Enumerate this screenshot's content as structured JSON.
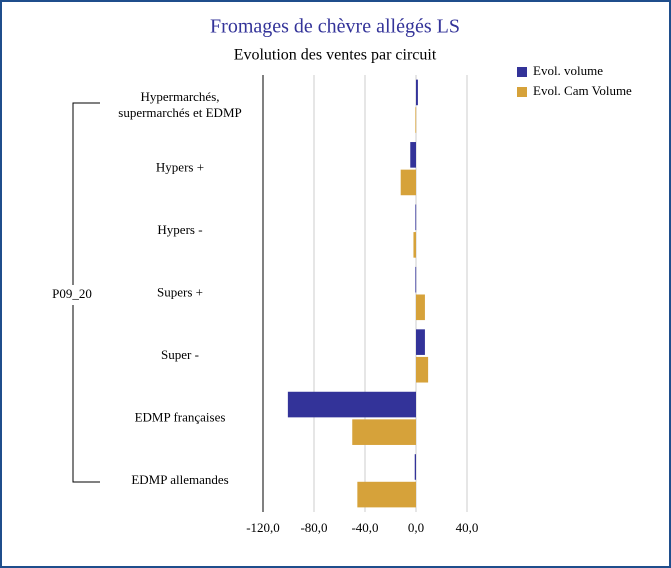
{
  "chart_data": {
    "type": "hbar",
    "title": "Fromages de chèvre allégés LS",
    "subtitle": "Evolution des ventes par circuit",
    "group_label": "P09_20",
    "categories": [
      "Hypermarchés,\nsupermarchés et EDMP",
      "Hypers +",
      "Hypers -",
      "Supers +",
      "Super -",
      "EDMP françaises",
      "EDMP allemandes"
    ],
    "series": [
      {
        "name": "Evol. volume",
        "color": "#333399",
        "values": [
          1.5,
          -4.5,
          -0.5,
          -0.5,
          7,
          -100.5,
          -1
        ]
      },
      {
        "name": "Evol. Cam Volume",
        "color": "#d6a23a",
        "values": [
          -0.5,
          -12,
          -2,
          7,
          9.5,
          -50,
          -46
        ]
      }
    ],
    "xlim": [
      -120,
      40
    ],
    "xticks": [
      {
        "value": -120,
        "label": "-120,0"
      },
      {
        "value": -80,
        "label": "-80,0"
      },
      {
        "value": -40,
        "label": "-40,0"
      },
      {
        "value": 0,
        "label": "0,0"
      },
      {
        "value": 40,
        "label": "40,0"
      }
    ],
    "grid": true,
    "legend": "top-right"
  }
}
